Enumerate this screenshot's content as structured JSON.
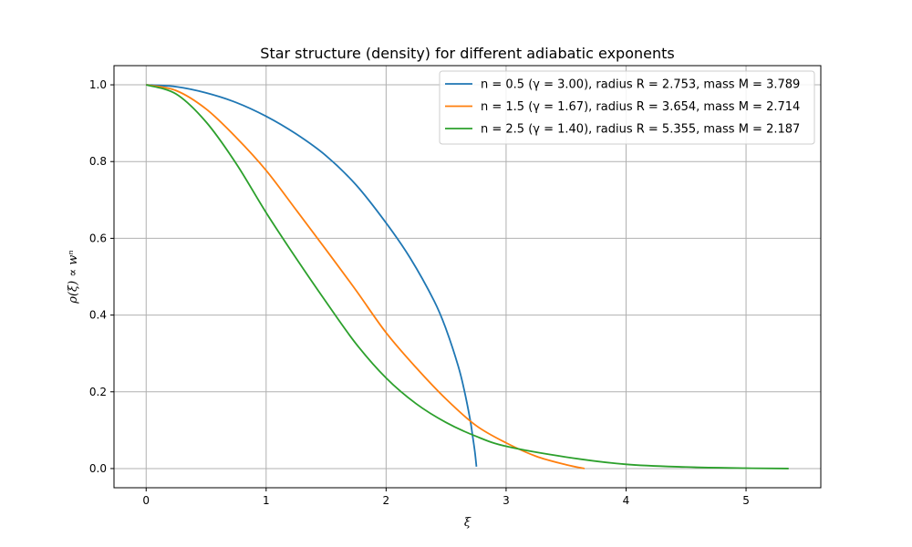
{
  "chart_data": {
    "type": "line",
    "title": "Star structure (density) for different adiabatic exponents",
    "xlabel": "ξ",
    "ylabel": "ρ(ξ) ∝ wⁿ",
    "xlim": [
      -0.268,
      5.623
    ],
    "ylim": [
      -0.05,
      1.05
    ],
    "xticks": [
      0,
      1,
      2,
      3,
      4,
      5
    ],
    "xtick_labels": [
      "0",
      "1",
      "2",
      "3",
      "4",
      "5"
    ],
    "yticks": [
      0.0,
      0.2,
      0.4,
      0.6,
      0.8,
      1.0
    ],
    "ytick_labels": [
      "0.0",
      "0.2",
      "0.4",
      "0.6",
      "0.8",
      "1.0"
    ],
    "grid": true,
    "legend_position": "upper-right",
    "series": [
      {
        "name": "n = 0.5 (γ = 3.00), radius R = 2.753, mass M = 3.789",
        "color": "#1f77b4",
        "x": [
          0,
          0.25,
          0.5,
          0.75,
          1.0,
          1.25,
          1.5,
          1.75,
          2.0,
          2.2,
          2.4,
          2.5,
          2.6,
          2.65,
          2.7,
          2.72,
          2.74,
          2.753
        ],
        "y": [
          1.0,
          0.995,
          0.979,
          0.954,
          0.918,
          0.872,
          0.815,
          0.739,
          0.64,
          0.549,
          0.437,
          0.363,
          0.268,
          0.206,
          0.128,
          0.087,
          0.043,
          0.005
        ]
      },
      {
        "name": "n = 1.5 (γ = 1.67), radius R = 3.654, mass M = 2.714",
        "color": "#ff7f0e",
        "x": [
          0,
          0.25,
          0.5,
          0.75,
          1.0,
          1.25,
          1.5,
          1.75,
          2.0,
          2.25,
          2.5,
          2.75,
          3.0,
          3.25,
          3.5,
          3.654
        ],
        "y": [
          1.0,
          0.985,
          0.937,
          0.863,
          0.777,
          0.674,
          0.57,
          0.464,
          0.354,
          0.263,
          0.181,
          0.112,
          0.067,
          0.032,
          0.01,
          0.0
        ]
      },
      {
        "name": "n = 2.5 (γ = 1.40), radius R = 5.355, mass M = 2.187",
        "color": "#2ca02c",
        "x": [
          0,
          0.25,
          0.5,
          0.75,
          1.0,
          1.25,
          1.5,
          1.75,
          2.0,
          2.25,
          2.5,
          2.75,
          3.0,
          3.5,
          4.0,
          4.5,
          5.0,
          5.355
        ],
        "y": [
          1.0,
          0.976,
          0.903,
          0.795,
          0.667,
          0.548,
          0.434,
          0.325,
          0.236,
          0.169,
          0.12,
          0.084,
          0.058,
          0.03,
          0.011,
          0.004,
          0.001,
          0.0
        ]
      }
    ]
  }
}
